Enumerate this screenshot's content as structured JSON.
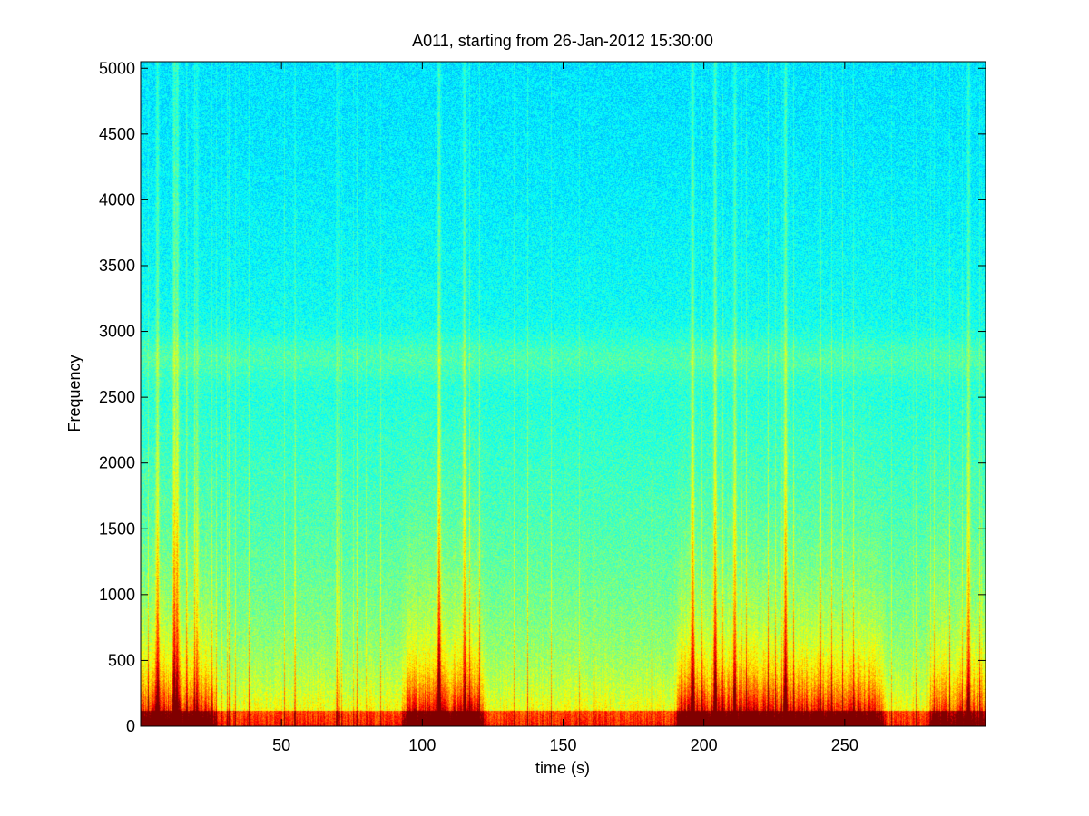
{
  "chart_data": {
    "type": "heatmap",
    "title": "A011, starting from 26-Jan-2012 15:30:00",
    "xlabel": "time (s)",
    "ylabel": "Frequency",
    "xlim": [
      0,
      300
    ],
    "ylim": [
      0,
      5050
    ],
    "xticks": [
      50,
      100,
      150,
      200,
      250
    ],
    "xtick_labels": [
      "50",
      "100",
      "150",
      "200",
      "250"
    ],
    "yticks": [
      0,
      500,
      1000,
      1500,
      2000,
      2500,
      3000,
      3500,
      4000,
      4500,
      5000
    ],
    "ytick_labels": [
      "0",
      "500",
      "1000",
      "1500",
      "2000",
      "2500",
      "3000",
      "3500",
      "4000",
      "4500",
      "5000"
    ],
    "colormap": "jet",
    "grid": false,
    "background_color": "#ffffff",
    "features": {
      "narrowband_band_frequency": 2800,
      "broadband_transients": [
        {
          "time": 6,
          "strength": 0.85
        },
        {
          "time": 12,
          "strength": 1.0
        },
        {
          "time": 13,
          "strength": 0.95
        },
        {
          "time": 20,
          "strength": 0.5
        },
        {
          "time": 106,
          "strength": 1.0
        },
        {
          "time": 115,
          "strength": 0.8
        },
        {
          "time": 196,
          "strength": 0.95
        },
        {
          "time": 204,
          "strength": 0.95
        },
        {
          "time": 211,
          "strength": 0.8
        },
        {
          "time": 229,
          "strength": 1.0
        },
        {
          "time": 294,
          "strength": 0.75
        }
      ],
      "high_energy_low_frequency_spans": [
        {
          "start": 0,
          "end": 25,
          "strength": 0.8
        },
        {
          "start": 95,
          "end": 120,
          "strength": 0.85
        },
        {
          "start": 192,
          "end": 262,
          "strength": 0.85
        },
        {
          "start": 282,
          "end": 300,
          "strength": 0.7
        }
      ]
    }
  }
}
